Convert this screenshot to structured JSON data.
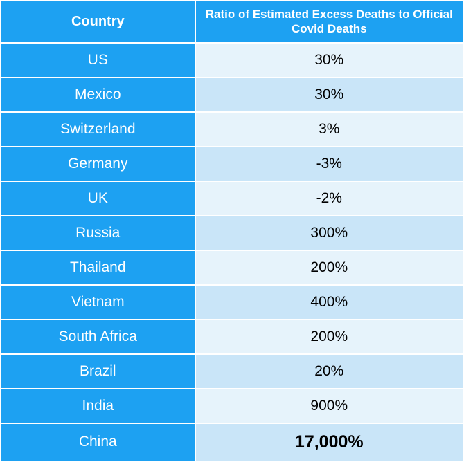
{
  "table": {
    "type": "table",
    "columns": [
      {
        "key": "country",
        "label": "Country",
        "width_pct": 42,
        "align": "center"
      },
      {
        "key": "ratio",
        "label": "Ratio of Estimated Excess Deaths to Official Covid Deaths",
        "width_pct": 58,
        "align": "center"
      }
    ],
    "rows": [
      {
        "country": "US",
        "ratio": "30%",
        "bold": false
      },
      {
        "country": "Mexico",
        "ratio": "30%",
        "bold": false
      },
      {
        "country": "Switzerland",
        "ratio": "3%",
        "bold": false
      },
      {
        "country": "Germany",
        "ratio": "-3%",
        "bold": false
      },
      {
        "country": "UK",
        "ratio": "-2%",
        "bold": false
      },
      {
        "country": "Russia",
        "ratio": "300%",
        "bold": false
      },
      {
        "country": "Thailand",
        "ratio": "200%",
        "bold": false
      },
      {
        "country": "Vietnam",
        "ratio": "400%",
        "bold": false
      },
      {
        "country": "South Africa",
        "ratio": "200%",
        "bold": false
      },
      {
        "country": "Brazil",
        "ratio": "20%",
        "bold": false
      },
      {
        "country": "India",
        "ratio": "900%",
        "bold": false
      },
      {
        "country": "China",
        "ratio": "17,000%",
        "bold": true
      }
    ],
    "colors": {
      "header_bg": "#1da1f2",
      "header_text": "#ffffff",
      "country_col_bg": "#1da1f2",
      "country_col_text": "#ffffff",
      "value_row_odd_bg": "#e6f3fb",
      "value_row_even_bg": "#c9e5f8",
      "value_text": "#000000",
      "border_color": "#ffffff"
    },
    "typography": {
      "header_fontsize": 20,
      "ratio_header_fontsize": 17,
      "body_fontsize": 21,
      "bold_value_fontsize": 25,
      "font_family": "Helvetica Neue"
    },
    "border_width": 2
  }
}
